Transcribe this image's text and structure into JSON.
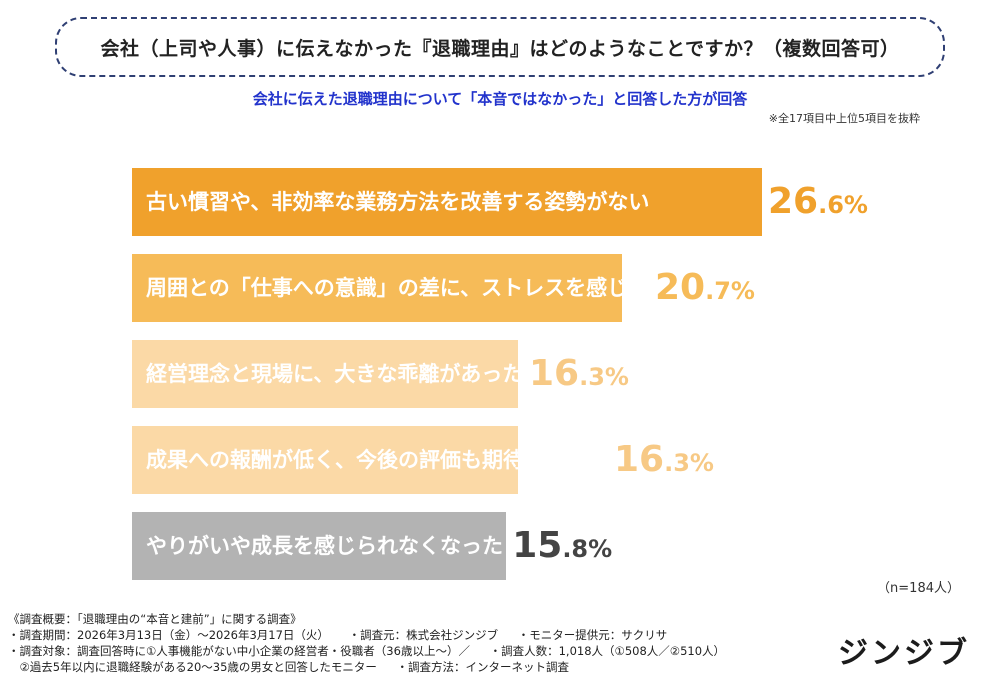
{
  "header": {
    "title": "会社（上司や人事）に伝えなかった『退職理由』はどのようなことですか？（複数回答可）",
    "subtitle": "会社に伝えた退職理由について「本音ではなかった」と回答した方が回答",
    "note": "※全17項目中上位5項目を抜粋"
  },
  "chart_data": {
    "type": "bar",
    "orientation": "horizontal",
    "categories": [
      "古い慣習や、非効率な業務方法を改善する姿勢がない",
      "周囲との「仕事への意識」の差に、ストレスを感じた",
      "経営理念と現場に、大きな乖離があった",
      "成果への報酬が低く、今後の評価も期待できない",
      "やりがいや成長を感じられなくなった"
    ],
    "values": [
      26.6,
      20.7,
      16.3,
      16.3,
      15.8
    ],
    "value_labels": [
      {
        "int": "26",
        "dec": ".6%"
      },
      {
        "int": "20",
        "dec": ".7%"
      },
      {
        "int": "16",
        "dec": ".3%"
      },
      {
        "int": "16",
        "dec": ".3%"
      },
      {
        "int": "15",
        "dec": ".8%"
      }
    ],
    "bar_colors": [
      "#f0a12c",
      "#f6bb58",
      "#fbd9a6",
      "#fbd9a6",
      "#b3b3b3"
    ],
    "value_colors": [
      "#f0a12c",
      "#f6bb58",
      "#f7c985",
      "#f7c985",
      "#444444"
    ],
    "xlim": [
      0,
      100
    ],
    "grid": false
  },
  "sample_size": "（n=184人）",
  "footer": {
    "heading": "《調査概要：「退職理由の“本音と建前”」に関する調査》",
    "lines": [
      [
        "・調査期間：2026年3月13日（金）〜2026年3月17日（火）",
        "・調査元：株式会社ジンジブ",
        "・モニター提供元：サクリサ"
      ],
      [
        "・調査対象：調査回答時に①人事機能がない中小企業の経営者・役職者（36歳以上〜）／",
        "・調査人数：1,018人（①508人／②510人）"
      ],
      [
        "　②過去5年以内に退職経験がある20〜35歳の男女と回答したモニター",
        "・調査方法：インターネット調査"
      ]
    ]
  },
  "logo": "ジンジブ"
}
